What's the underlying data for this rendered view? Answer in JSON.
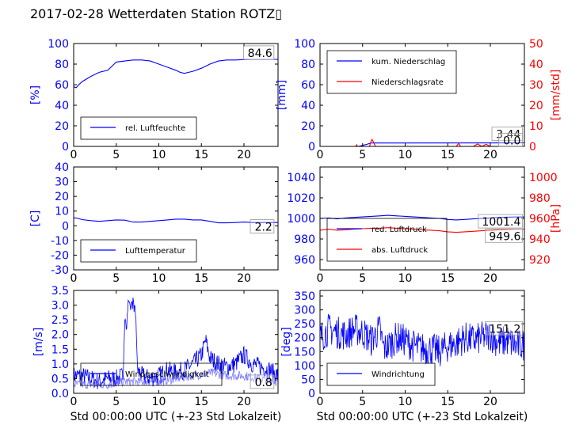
{
  "title": "2017-02-28 Wetterdaten Station ROTZ▯",
  "xlabel": "Std 00:00:00 UTC (+-23 Std Lokalzeit)",
  "colors": {
    "blue": "#0000ff",
    "red": "#ff0000",
    "light_blue": "#7f7fff",
    "black": "#000000"
  },
  "chart_data": [
    {
      "type": "line",
      "ylabel": "[%]",
      "xlim": [
        0,
        24
      ],
      "ylim": [
        0,
        100
      ],
      "xticks": [
        0,
        5,
        10,
        15,
        20
      ],
      "yticks": [
        0,
        20,
        40,
        60,
        80,
        100
      ],
      "legend_position": "bottom-left",
      "annotations": [
        "84.6"
      ],
      "series": [
        {
          "name": "rel. Luftfeuchte",
          "color": "#0000ff",
          "axis": "left",
          "x": [
            0,
            0.3,
            0.6,
            1,
            2,
            3,
            4,
            4.5,
            5,
            6,
            7,
            8,
            9,
            10,
            11,
            12,
            12.5,
            13,
            13.5,
            14,
            15,
            16,
            17,
            18,
            19,
            20,
            21,
            22,
            23,
            24
          ],
          "y": [
            58,
            57,
            60,
            63,
            68,
            72,
            74,
            78,
            82,
            83,
            84,
            84,
            83,
            80,
            77,
            74,
            72,
            71,
            72,
            73,
            76,
            80,
            83,
            84,
            84,
            84.5,
            84.6,
            84.6,
            84.6,
            84.6
          ]
        }
      ]
    },
    {
      "type": "line",
      "ylabel": "[mm]",
      "ylabel_right": "[mm/std]",
      "xlim": [
        0,
        24
      ],
      "ylim": [
        0,
        100
      ],
      "ylim_right": [
        0,
        50
      ],
      "xticks": [
        0,
        5,
        10,
        15,
        20
      ],
      "yticks": [
        0,
        20,
        40,
        60,
        80,
        100
      ],
      "yticks_right": [
        0,
        10,
        20,
        30,
        40,
        50
      ],
      "legend_position": "top-left",
      "annotations": [
        "3.44",
        "0.0"
      ],
      "series": [
        {
          "name": "kum. Niederschlag",
          "color": "#0000ff",
          "axis": "left",
          "x": [
            0,
            4.5,
            5,
            5.5,
            6,
            24
          ],
          "y": [
            0,
            0,
            1,
            2,
            3.3,
            3.44
          ]
        },
        {
          "name": "Niederschlagsrate",
          "color": "#ff0000",
          "axis": "right",
          "x": [
            0,
            4.2,
            4.3,
            4.4,
            5,
            5.8,
            6,
            6.1,
            6.3,
            6.5,
            7,
            16,
            16.3,
            16.5,
            17,
            18,
            18.5,
            19,
            19.5,
            20,
            24
          ],
          "y": [
            0,
            0,
            0.8,
            0,
            0,
            0,
            2.5,
            3.4,
            2.0,
            0,
            0,
            0,
            1.5,
            0,
            0,
            0,
            1.2,
            0,
            1.0,
            0,
            0
          ]
        }
      ]
    },
    {
      "type": "line",
      "ylabel": "[C]",
      "xlim": [
        0,
        24
      ],
      "ylim": [
        -30,
        40
      ],
      "xticks": [
        0,
        5,
        10,
        15,
        20
      ],
      "yticks": [
        -30,
        -20,
        -10,
        0,
        10,
        20,
        30,
        40
      ],
      "legend_position": "bottom-left",
      "annotations": [
        "2.2"
      ],
      "series": [
        {
          "name": "Lufttemperatur",
          "color": "#0000ff",
          "axis": "left",
          "x": [
            0,
            0.5,
            1,
            2,
            3,
            4,
            5,
            6,
            7,
            8,
            9,
            10,
            11,
            12,
            13,
            14,
            15,
            16,
            17,
            18,
            19,
            20,
            21,
            22,
            23,
            24
          ],
          "y": [
            5.5,
            5.0,
            4.2,
            3.5,
            3.0,
            3.5,
            4.0,
            3.8,
            2.5,
            2.5,
            3.0,
            3.5,
            4.0,
            4.5,
            4.5,
            4.0,
            4.0,
            3.0,
            2.0,
            2.0,
            2.2,
            2.5,
            2.2,
            2.2,
            2.2,
            2.2
          ]
        }
      ]
    },
    {
      "type": "line",
      "ylabel_right": "[hPa]",
      "xlim": [
        0,
        24
      ],
      "ylim": [
        950,
        1050
      ],
      "ylim_right": [
        910,
        1010
      ],
      "xticks": [
        0,
        5,
        10,
        15,
        20
      ],
      "yticks": [
        960,
        980,
        1000,
        1020,
        1040
      ],
      "yticks_right": [
        920,
        940,
        960,
        980,
        1000
      ],
      "legend_position": "bottom-left",
      "annotations": [
        "1001.4",
        "949.6"
      ],
      "series": [
        {
          "name": "red. Luftdruck",
          "color": "#0000ff",
          "axis": "left",
          "x": [
            0,
            1,
            2,
            3,
            4,
            5,
            6,
            7,
            8,
            9,
            10,
            11,
            12,
            13,
            14,
            15,
            16,
            17,
            18,
            19,
            20,
            21,
            22,
            23,
            24
          ],
          "y": [
            1000,
            1000.5,
            999.5,
            1000.5,
            1001,
            1001.5,
            1002,
            1002.5,
            1003,
            1002.5,
            1002,
            1001.5,
            1001,
            1000.5,
            1000,
            999,
            998.5,
            999,
            999.5,
            1000,
            1000.5,
            1001,
            1001.2,
            1001.4,
            1001.4
          ]
        },
        {
          "name": "abs. Luftdruck",
          "color": "#ff0000",
          "axis": "right",
          "x": [
            0,
            1,
            2,
            3,
            4,
            5,
            6,
            7,
            8,
            9,
            10,
            11,
            12,
            13,
            14,
            15,
            16,
            17,
            18,
            19,
            20,
            21,
            22,
            23,
            24
          ],
          "y": [
            948.5,
            949.5,
            948.5,
            949,
            949.5,
            950,
            950.5,
            950.5,
            951,
            950.5,
            950,
            949.5,
            949,
            948.5,
            948,
            947,
            946.5,
            947,
            947.5,
            948,
            948.5,
            949,
            949.3,
            949.6,
            949.6
          ]
        }
      ]
    },
    {
      "type": "line",
      "ylabel": "[m/s]",
      "xlim": [
        0,
        24
      ],
      "ylim": [
        0,
        3.5
      ],
      "xticks": [
        0,
        5,
        10,
        15,
        20
      ],
      "yticks": [
        0,
        0.5,
        1.0,
        1.5,
        2.0,
        2.5,
        3.0,
        3.5
      ],
      "legend_position": "bottom-left",
      "annotations": [
        "0.8"
      ],
      "series": [
        {
          "name": "Windgeschwindigkeit",
          "color": "#0000ff",
          "axis": "left",
          "noisy": true,
          "x": [
            0,
            1,
            2,
            3,
            4,
            5,
            5.8,
            6,
            6.2,
            6.4,
            6.6,
            7,
            7.3,
            7.5,
            8,
            9,
            10,
            11,
            12,
            13,
            14,
            15,
            15.5,
            16,
            17,
            18,
            19,
            20,
            21,
            22,
            23,
            24
          ],
          "y": [
            0.6,
            0.6,
            0.5,
            0.4,
            0.5,
            0.5,
            0.6,
            2.8,
            2.2,
            3.0,
            2.9,
            3.1,
            2.6,
            0.8,
            0.6,
            0.5,
            0.6,
            0.8,
            0.7,
            0.8,
            1.0,
            1.3,
            1.8,
            1.2,
            1.0,
            0.9,
            1.0,
            1.3,
            1.0,
            0.9,
            0.8,
            0.6
          ]
        },
        {
          "name": "",
          "color": "#7f7fff",
          "axis": "left",
          "noisy": true,
          "x": [
            0,
            2,
            4,
            6,
            8,
            10,
            12,
            14,
            16,
            18,
            20,
            22,
            24
          ],
          "y": [
            0.3,
            0.3,
            0.3,
            0.4,
            0.4,
            0.4,
            0.5,
            0.6,
            0.7,
            0.6,
            0.6,
            0.5,
            0.4
          ]
        }
      ]
    },
    {
      "type": "line",
      "ylabel": "[deg]",
      "xlim": [
        0,
        24
      ],
      "ylim": [
        0,
        370
      ],
      "xticks": [
        0,
        5,
        10,
        15,
        20
      ],
      "yticks": [
        0,
        50,
        100,
        150,
        200,
        250,
        300,
        350
      ],
      "legend_position": "bottom-left",
      "annotations": [
        "151.2"
      ],
      "series": [
        {
          "name": "Windrichtung",
          "color": "#0000ff",
          "axis": "left",
          "noisy": true,
          "x": [
            0,
            1,
            2,
            3,
            4,
            5,
            6,
            7,
            7.5,
            8,
            9,
            10,
            11,
            12,
            13,
            14,
            15,
            16,
            17,
            18,
            19,
            20,
            21,
            22,
            23,
            24
          ],
          "y": [
            200,
            230,
            220,
            210,
            230,
            220,
            190,
            230,
            160,
            170,
            200,
            190,
            170,
            160,
            160,
            150,
            170,
            180,
            200,
            190,
            200,
            210,
            180,
            190,
            170,
            175
          ]
        }
      ]
    }
  ]
}
